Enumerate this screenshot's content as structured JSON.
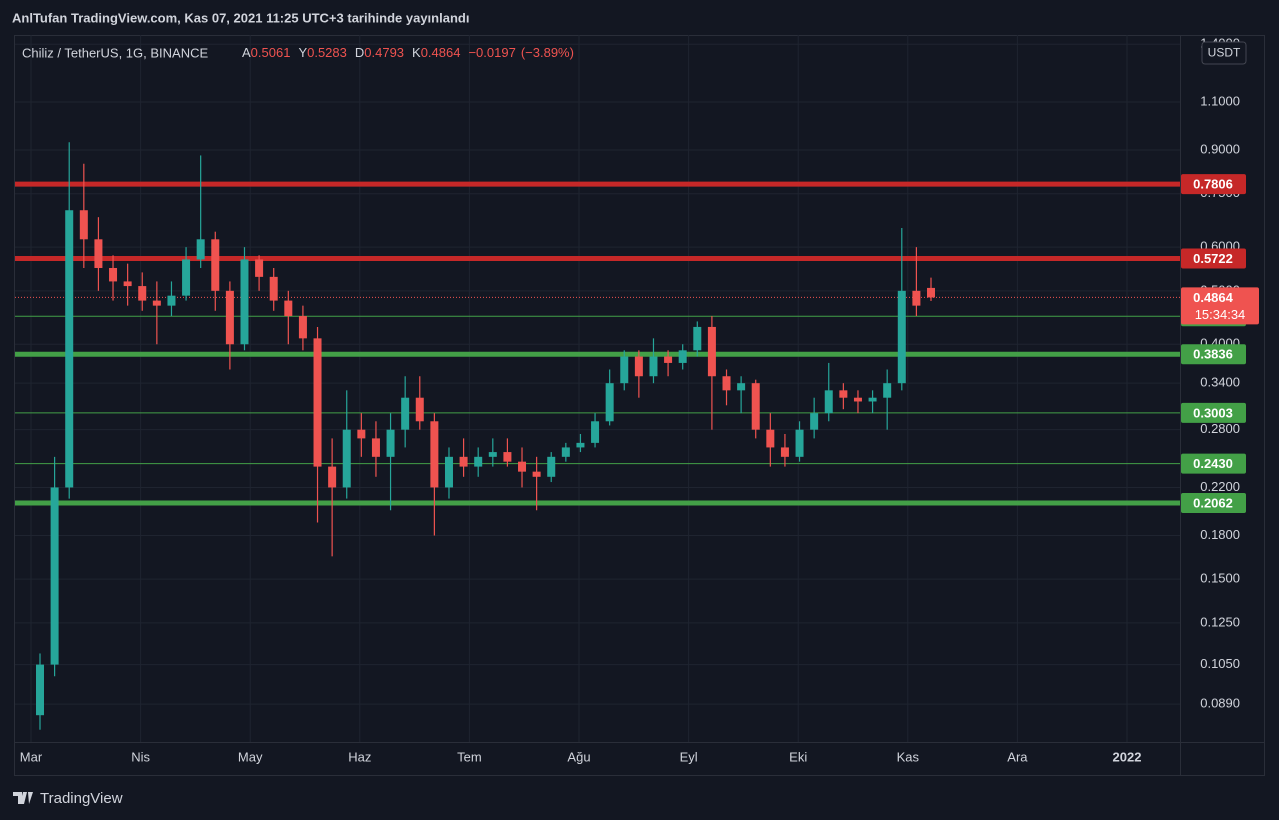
{
  "header": "AnlTufan TradingView.com, Kas 07, 2021 11:25 UTC+3 tarihinde yayınlandı",
  "footer": {
    "brand": "TradingView"
  },
  "chart_data": {
    "type": "candlestick",
    "title": "Chiliz / TetherUS, 1G, BINANCE",
    "ohlc_labels": [
      "A",
      "Y",
      "D",
      "K"
    ],
    "change": "−0.0197",
    "change_pct": "(−3.89%)",
    "currency": "USDT",
    "countdown": "15:34:34",
    "categories": [
      "Mar",
      "Nis",
      "May",
      "Haz",
      "Tem",
      "Ağu",
      "Eyl",
      "Eki",
      "Kas",
      "Ara",
      "2022"
    ],
    "open": [
      0.085,
      0.105,
      0.22,
      0.7,
      0.62,
      0.55,
      0.52,
      0.51,
      0.48,
      0.47,
      0.49,
      0.57,
      0.62,
      0.5,
      0.4,
      0.57,
      0.53,
      0.48,
      0.45,
      0.41,
      0.24,
      0.22,
      0.28,
      0.27,
      0.25,
      0.28,
      0.32,
      0.29,
      0.22,
      0.25,
      0.24,
      0.25,
      0.255,
      0.245,
      0.235,
      0.23,
      0.25,
      0.26,
      0.265,
      0.29,
      0.34,
      0.38,
      0.35,
      0.38,
      0.37,
      0.39,
      0.43,
      0.35,
      0.33,
      0.34,
      0.28,
      0.26,
      0.25,
      0.28,
      0.3,
      0.33,
      0.32,
      0.315,
      0.32,
      0.34,
      0.5,
      0.5061
    ],
    "high": [
      0.11,
      0.25,
      0.93,
      0.85,
      0.68,
      0.58,
      0.56,
      0.54,
      0.52,
      0.52,
      0.6,
      0.88,
      0.64,
      0.52,
      0.6,
      0.58,
      0.55,
      0.5,
      0.47,
      0.43,
      0.27,
      0.33,
      0.3,
      0.29,
      0.3,
      0.35,
      0.35,
      0.3,
      0.26,
      0.27,
      0.26,
      0.27,
      0.27,
      0.26,
      0.25,
      0.255,
      0.265,
      0.275,
      0.3,
      0.36,
      0.39,
      0.39,
      0.41,
      0.39,
      0.4,
      0.44,
      0.45,
      0.36,
      0.35,
      0.345,
      0.3,
      0.275,
      0.29,
      0.32,
      0.37,
      0.34,
      0.33,
      0.33,
      0.36,
      0.65,
      0.6,
      0.5283
    ],
    "low": [
      0.08,
      0.1,
      0.21,
      0.55,
      0.5,
      0.48,
      0.47,
      0.46,
      0.4,
      0.45,
      0.48,
      0.55,
      0.46,
      0.36,
      0.39,
      0.5,
      0.46,
      0.4,
      0.39,
      0.19,
      0.165,
      0.21,
      0.25,
      0.23,
      0.2,
      0.26,
      0.28,
      0.18,
      0.21,
      0.23,
      0.23,
      0.24,
      0.24,
      0.22,
      0.2,
      0.225,
      0.245,
      0.255,
      0.26,
      0.285,
      0.33,
      0.32,
      0.34,
      0.35,
      0.36,
      0.38,
      0.28,
      0.31,
      0.3,
      0.27,
      0.24,
      0.24,
      0.245,
      0.27,
      0.29,
      0.305,
      0.3,
      0.3,
      0.28,
      0.33,
      0.45,
      0.4793
    ],
    "close": [
      0.105,
      0.22,
      0.7,
      0.62,
      0.55,
      0.52,
      0.51,
      0.48,
      0.47,
      0.49,
      0.57,
      0.62,
      0.5,
      0.4,
      0.57,
      0.53,
      0.48,
      0.45,
      0.41,
      0.24,
      0.22,
      0.28,
      0.27,
      0.25,
      0.28,
      0.32,
      0.29,
      0.22,
      0.25,
      0.24,
      0.25,
      0.255,
      0.245,
      0.235,
      0.23,
      0.25,
      0.26,
      0.265,
      0.29,
      0.34,
      0.38,
      0.35,
      0.38,
      0.37,
      0.39,
      0.43,
      0.35,
      0.33,
      0.34,
      0.28,
      0.26,
      0.25,
      0.28,
      0.3,
      0.33,
      0.32,
      0.315,
      0.32,
      0.34,
      0.5,
      0.47,
      0.4864
    ],
    "up_color": "#26a69a",
    "down_color": "#ef5350",
    "log_scale": true,
    "grid": true,
    "ylim": [
      0.076,
      1.455
    ],
    "yticks": [
      {
        "value": 0.089,
        "label": "0.0890"
      },
      {
        "value": 0.105,
        "label": "0.1050"
      },
      {
        "value": 0.125,
        "label": "0.1250"
      },
      {
        "value": 0.15,
        "label": "0.1500"
      },
      {
        "value": 0.18,
        "label": "0.1800"
      },
      {
        "value": 0.22,
        "label": "0.2200"
      },
      {
        "value": 0.28,
        "label": "0.2800"
      },
      {
        "value": 0.34,
        "label": "0.3400"
      },
      {
        "value": 0.4,
        "label": "0.4000"
      },
      {
        "value": 0.5,
        "label": "0.5000"
      },
      {
        "value": 0.6,
        "label": "0.6000"
      },
      {
        "value": 0.75,
        "label": "0.7500"
      },
      {
        "value": 0.9,
        "label": "0.9000"
      },
      {
        "value": 1.1,
        "label": "1.1000"
      },
      {
        "value": 1.4,
        "label": "1.4000"
      }
    ],
    "levels": [
      {
        "value": 0.7806,
        "color": "#c62828",
        "weight": "thick"
      },
      {
        "value": 0.5722,
        "color": "#c62828",
        "weight": "thick"
      },
      {
        "value": 0.4496,
        "color": "#43a047",
        "weight": "thin"
      },
      {
        "value": 0.3836,
        "color": "#43a047",
        "weight": "thick"
      },
      {
        "value": 0.3003,
        "color": "#43a047",
        "weight": "thin"
      },
      {
        "value": {
          "value": 0.243,
          "label": "0.2430"
        },
        "color": "#43a047",
        "weight": "thin"
      },
      {
        "value": 0.2062,
        "color": "#43a047",
        "weight": "thick"
      }
    ]
  }
}
